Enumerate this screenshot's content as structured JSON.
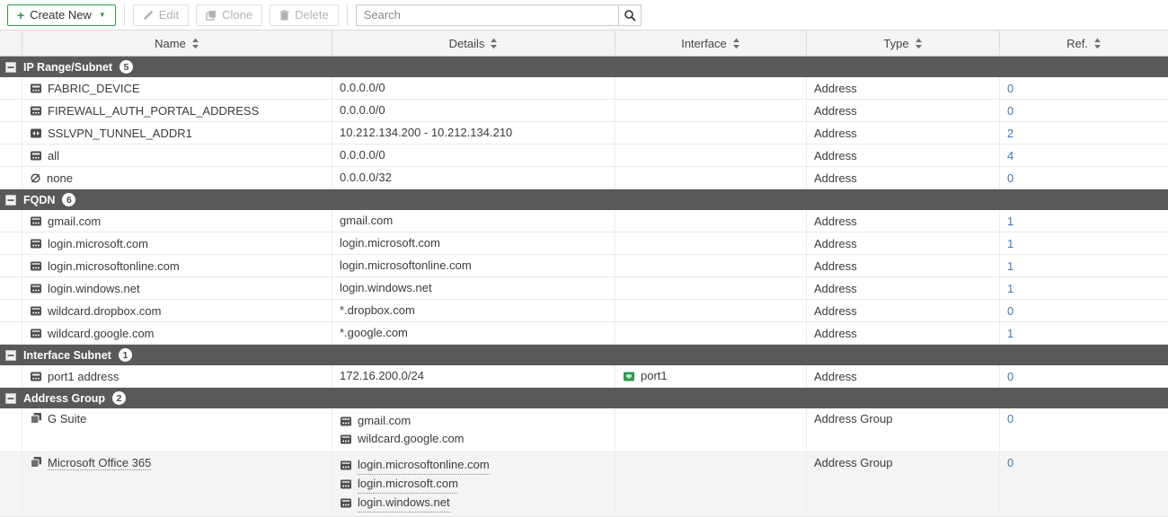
{
  "toolbar": {
    "create_new_label": "Create New",
    "edit_label": "Edit",
    "clone_label": "Clone",
    "delete_label": "Delete",
    "search_placeholder": "Search"
  },
  "columns": [
    {
      "label": "Name"
    },
    {
      "label": "Details"
    },
    {
      "label": "Interface"
    },
    {
      "label": "Type"
    },
    {
      "label": "Ref."
    }
  ],
  "colors": {
    "accent_green": "#2d9a4b",
    "section_bar_bg": "#595959",
    "ref_link_blue": "#4479ab",
    "highlight_row_bg": "#f4f4f4"
  },
  "sections": [
    {
      "title": "IP Range/Subnet",
      "count": "5",
      "rows": [
        {
          "icon": "address-subnet-icon",
          "name": "FABRIC_DEVICE",
          "details": [
            {
              "text": "0.0.0.0/0"
            }
          ],
          "type": "Address",
          "ref": "0"
        },
        {
          "icon": "address-subnet-icon",
          "name": "FIREWALL_AUTH_PORTAL_ADDRESS",
          "details": [
            {
              "text": "0.0.0.0/0"
            }
          ],
          "type": "Address",
          "ref": "0"
        },
        {
          "icon": "address-range-icon",
          "name": "SSLVPN_TUNNEL_ADDR1",
          "details": [
            {
              "text": "10.212.134.200 - 10.212.134.210"
            }
          ],
          "type": "Address",
          "ref": "2"
        },
        {
          "icon": "address-subnet-icon",
          "name": "all",
          "details": [
            {
              "text": "0.0.0.0/0"
            }
          ],
          "type": "Address",
          "ref": "4"
        },
        {
          "icon": "none-address-icon",
          "name": "none",
          "details": [
            {
              "text": "0.0.0.0/32"
            }
          ],
          "type": "Address",
          "ref": "0"
        }
      ]
    },
    {
      "title": "FQDN",
      "count": "6",
      "rows": [
        {
          "icon": "fqdn-icon",
          "name": "gmail.com",
          "details": [
            {
              "text": "gmail.com"
            }
          ],
          "type": "Address",
          "ref": "1"
        },
        {
          "icon": "fqdn-icon",
          "name": "login.microsoft.com",
          "details": [
            {
              "text": "login.microsoft.com"
            }
          ],
          "type": "Address",
          "ref": "1"
        },
        {
          "icon": "fqdn-icon",
          "name": "login.microsoftonline.com",
          "details": [
            {
              "text": "login.microsoftonline.com"
            }
          ],
          "type": "Address",
          "ref": "1"
        },
        {
          "icon": "fqdn-icon",
          "name": "login.windows.net",
          "details": [
            {
              "text": "login.windows.net"
            }
          ],
          "type": "Address",
          "ref": "1"
        },
        {
          "icon": "fqdn-icon",
          "name": "wildcard.dropbox.com",
          "details": [
            {
              "text": "*.dropbox.com"
            }
          ],
          "type": "Address",
          "ref": "0"
        },
        {
          "icon": "fqdn-icon",
          "name": "wildcard.google.com",
          "details": [
            {
              "text": "*.google.com"
            }
          ],
          "type": "Address",
          "ref": "1"
        }
      ]
    },
    {
      "title": "Interface Subnet",
      "count": "1",
      "rows": [
        {
          "icon": "address-subnet-icon",
          "name": "port1 address",
          "details": [
            {
              "text": "172.16.200.0/24"
            }
          ],
          "interface": {
            "icon": "interface-icon",
            "text": "port1"
          },
          "type": "Address",
          "ref": "0"
        }
      ]
    },
    {
      "title": "Address Group",
      "count": "2",
      "rows": [
        {
          "icon": "address-group-icon",
          "name": "G Suite",
          "details": [
            {
              "icon": "fqdn-icon",
              "text": "gmail.com"
            },
            {
              "icon": "fqdn-icon",
              "text": "wildcard.google.com"
            }
          ],
          "type": "Address Group",
          "ref": "0"
        },
        {
          "icon": "address-group-icon",
          "name": "Microsoft Office 365",
          "name_dotted": true,
          "highlighted": true,
          "details": [
            {
              "icon": "fqdn-icon",
              "text": "login.microsoftonline.com",
              "dotted": true
            },
            {
              "icon": "fqdn-icon",
              "text": "login.microsoft.com",
              "dotted": true
            },
            {
              "icon": "fqdn-icon",
              "text": "login.windows.net",
              "dotted": true
            }
          ],
          "type": "Address Group",
          "ref": "0"
        }
      ]
    }
  ]
}
